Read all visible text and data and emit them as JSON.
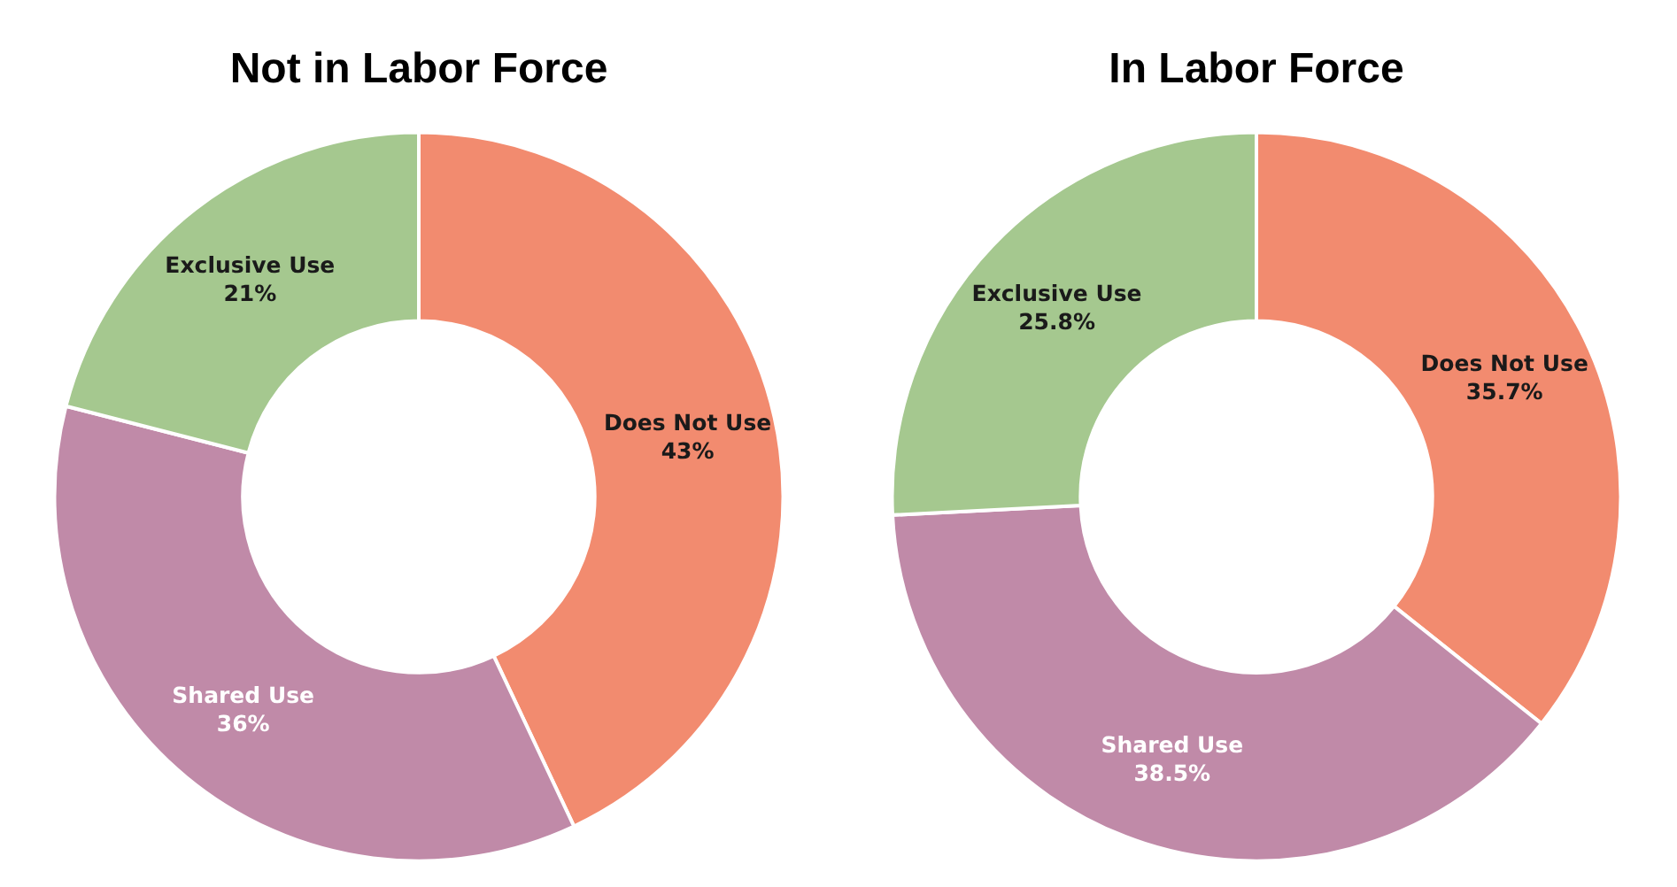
{
  "chart_data": [
    {
      "type": "donut",
      "title": "Not in Labor Force",
      "categories": [
        "Does Not Use",
        "Shared Use",
        "Exclusive Use"
      ],
      "values": [
        43,
        36,
        21
      ],
      "value_labels": [
        "43%",
        "36%",
        "21%"
      ],
      "colors": [
        "#f28b6f",
        "#c08aa8",
        "#a5c88f"
      ],
      "legend": false
    },
    {
      "type": "donut",
      "title": "In Labor Force",
      "categories": [
        "Does Not Use",
        "Shared Use",
        "Exclusive Use"
      ],
      "values": [
        35.7,
        38.5,
        25.8
      ],
      "value_labels": [
        "35.7%",
        "38.5%",
        "25.8%"
      ],
      "colors": [
        "#f28b6f",
        "#c08aa8",
        "#a5c88f"
      ],
      "legend": false
    }
  ]
}
